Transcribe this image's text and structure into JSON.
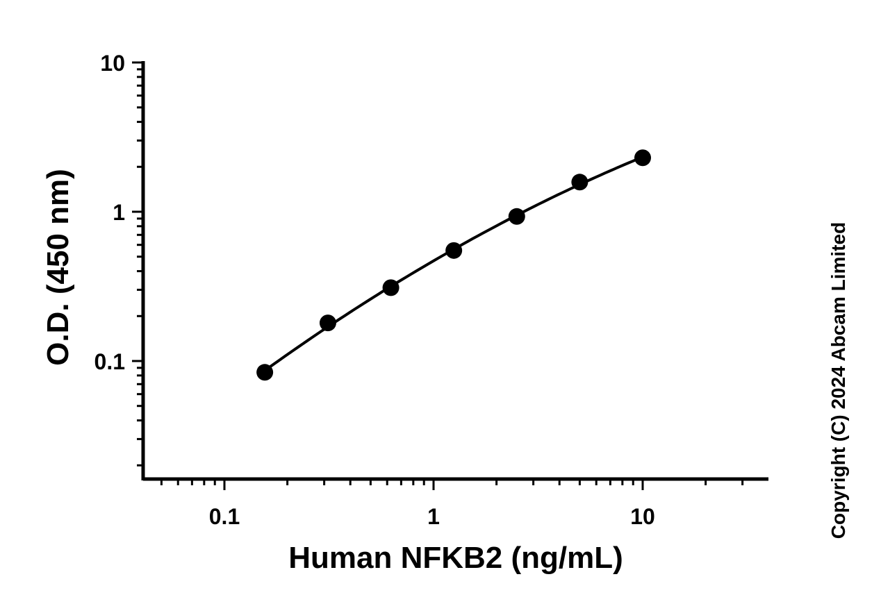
{
  "chart_data": {
    "type": "scatter",
    "xlabel": "Human NFKB2 (ng/mL)",
    "ylabel": "O.D. (450 nm)",
    "xscale": "log",
    "yscale": "log",
    "xlim": [
      0.04,
      35
    ],
    "ylim": [
      0.016,
      10
    ],
    "x_ticks": [
      {
        "value": 0.1,
        "label": "0.1"
      },
      {
        "value": 1,
        "label": "1"
      },
      {
        "value": 10,
        "label": "10"
      }
    ],
    "y_ticks": [
      {
        "value": 0.1,
        "label": "0.1"
      },
      {
        "value": 1,
        "label": "1"
      },
      {
        "value": 10,
        "label": "10"
      }
    ],
    "grid": false,
    "legend": "none",
    "series": [
      {
        "x": [
          0.156,
          0.3125,
          0.625,
          1.25,
          2.5,
          5,
          10
        ],
        "y": [
          0.084,
          0.18,
          0.31,
          0.55,
          0.93,
          1.58,
          2.3
        ],
        "marker": "filled-circle",
        "fit_line": true,
        "color": "#000000"
      }
    ]
  },
  "copyright": "Copyright (C) 2024 Abcam Limited"
}
